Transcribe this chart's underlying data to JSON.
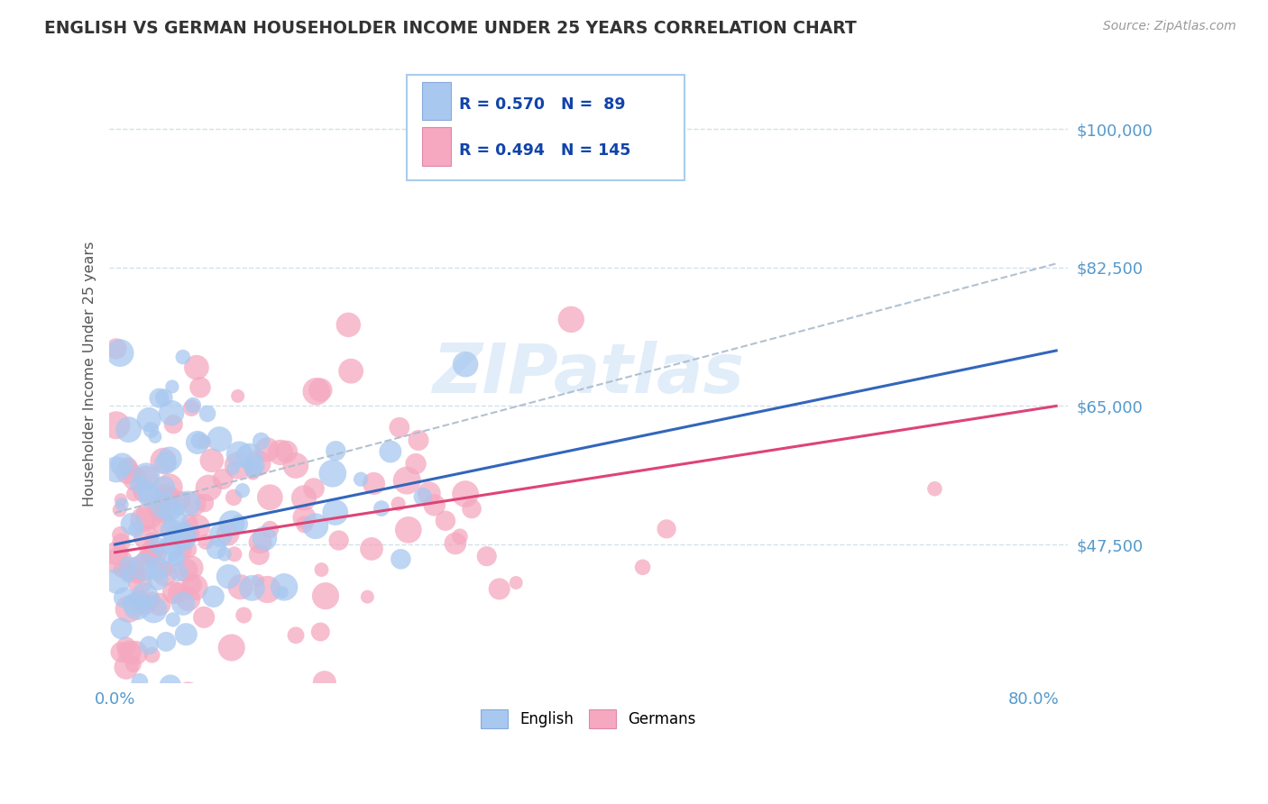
{
  "title": "ENGLISH VS GERMAN HOUSEHOLDER INCOME UNDER 25 YEARS CORRELATION CHART",
  "source_text": "Source: ZipAtlas.com",
  "ylabel": "Householder Income Under 25 years",
  "ytick_labels": [
    "$47,500",
    "$65,000",
    "$82,500",
    "$100,000"
  ],
  "ytick_values": [
    47500,
    65000,
    82500,
    100000
  ],
  "ymin": 30000,
  "ymax": 108000,
  "xmin": -0.005,
  "xmax": 0.83,
  "english_R": 0.57,
  "english_N": 89,
  "german_R": 0.494,
  "german_N": 145,
  "english_color": "#a8c8f0",
  "german_color": "#f5a8c0",
  "english_line_color": "#3366bb",
  "german_line_color": "#dd4477",
  "ci_line_color": "#aabbcc",
  "background_color": "#ffffff",
  "grid_color": "#ccdde8",
  "title_color": "#333333",
  "source_color": "#999999",
  "tick_label_color": "#5599cc",
  "watermark_color": "#c5ddf5",
  "legend_edge_color": "#aaccee",
  "legend_text_color": "#1144aa"
}
